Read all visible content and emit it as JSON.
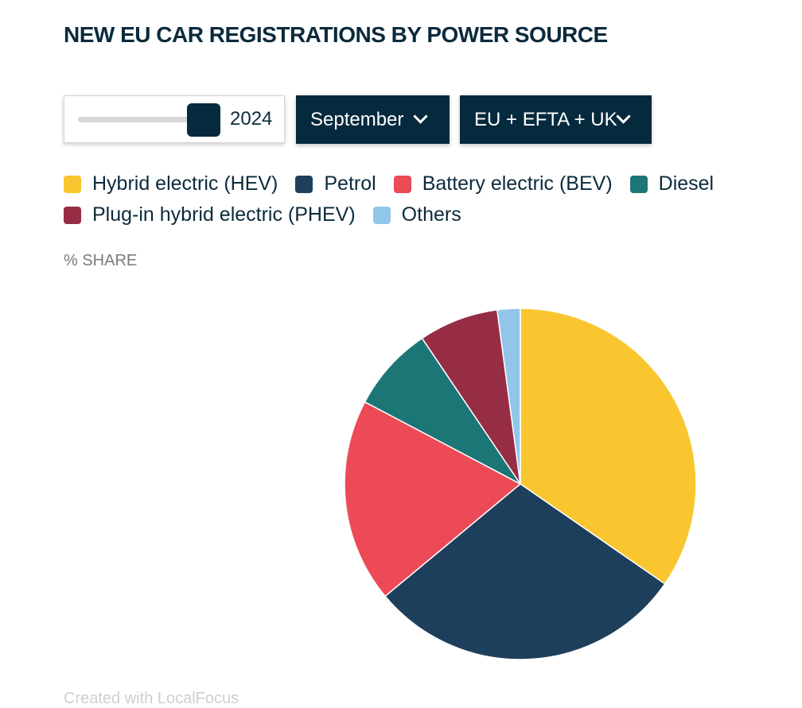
{
  "title": "NEW EU CAR REGISTRATIONS BY POWER SOURCE",
  "controls": {
    "year": "2024",
    "year_slider_level": 0.9,
    "month": "September",
    "region": "EU + EFTA + UK"
  },
  "unit_label": "% SHARE",
  "credit": "Created with LocalFocus",
  "chart_data": {
    "type": "pie",
    "categories": [
      "Hybrid electric (HEV)",
      "Petrol",
      "Battery electric (BEV)",
      "Diesel",
      "Plug-in hybrid electric (PHEV)",
      "Others"
    ],
    "values": [
      34.5,
      29.2,
      18.7,
      7.8,
      7.3,
      2.1
    ],
    "colors": [
      "#F9C62F",
      "#1E3F5C",
      "#EB4A56",
      "#1D7676",
      "#962D44",
      "#92C6E9"
    ],
    "start_angle_deg": 0,
    "direction": "clockwise",
    "legend_position": "top-left"
  }
}
